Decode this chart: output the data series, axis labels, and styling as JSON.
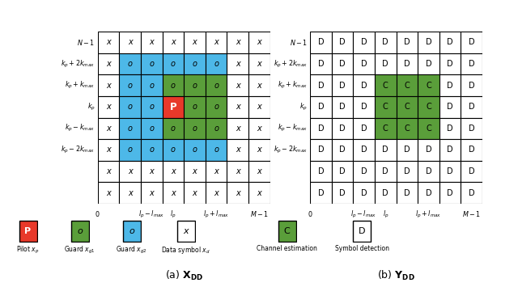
{
  "color_red": "#e8392a",
  "color_green": "#5a9e3a",
  "color_blue": "#4db8e8",
  "color_white": "#ffffff",
  "color_black": "#000000",
  "nrows": 8,
  "ncols": 8,
  "ylabels": [
    "$N-1$",
    "$k_p+2k_{max}$",
    "$k_p+k_{max}$",
    "$k_p$",
    "$k_p-k_{max}$",
    "$k_p-2k_{max}$",
    "",
    ""
  ],
  "xlabels": [
    [
      0,
      "$0$"
    ],
    [
      2,
      "$l_p-l_{max}$"
    ],
    [
      3,
      "$l_p$"
    ],
    [
      5,
      "$l_p+l_{max}$"
    ],
    [
      7,
      "$M-1$"
    ]
  ],
  "title_a": "(a) ",
  "title_b": "(b) ",
  "legend_x": [
    {
      "color": "#e8392a",
      "sym": "P",
      "label": "Pilot $x_p$",
      "bold": true,
      "tcolor": "white"
    },
    {
      "color": "#5a9e3a",
      "sym": "o",
      "label": "Guard $x_{g1}$",
      "bold": false,
      "tcolor": "black"
    },
    {
      "color": "#4db8e8",
      "sym": "o",
      "label": "Guard $x_{g2}$",
      "bold": false,
      "tcolor": "black"
    },
    {
      "color": "#ffffff",
      "sym": "x",
      "label": "Data symbol $x_d$",
      "bold": false,
      "tcolor": "black"
    }
  ],
  "legend_y": [
    {
      "color": "#5a9e3a",
      "sym": "C",
      "label": "Channel estimation",
      "tcolor": "black"
    },
    {
      "color": "#ffffff",
      "sym": "D",
      "label": "Symbol detection",
      "tcolor": "black"
    }
  ]
}
